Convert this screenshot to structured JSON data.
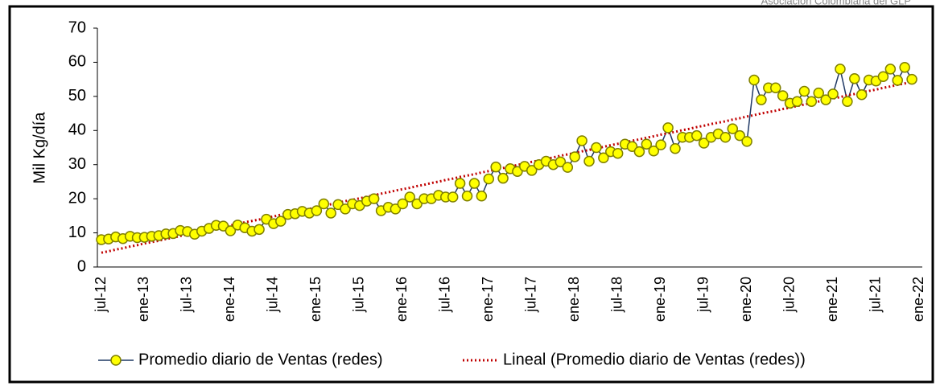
{
  "chart_data": {
    "type": "line",
    "source": "Asociación Colombiana del GLP",
    "y_label": "Mil  Kg/día",
    "categories": [
      "jul-12",
      null,
      null,
      null,
      null,
      null,
      "ene-13",
      null,
      null,
      null,
      null,
      null,
      "jul-13",
      null,
      null,
      null,
      null,
      null,
      "ene-14",
      null,
      null,
      null,
      null,
      null,
      "jul-14",
      null,
      null,
      null,
      null,
      null,
      "ene-15",
      null,
      null,
      null,
      null,
      null,
      "jul-15",
      null,
      null,
      null,
      null,
      null,
      "ene-16",
      null,
      null,
      null,
      null,
      null,
      "jul-16",
      null,
      null,
      null,
      null,
      null,
      "ene-17",
      null,
      null,
      null,
      null,
      null,
      "jul-17",
      null,
      null,
      null,
      null,
      null,
      "ene-18",
      null,
      null,
      null,
      null,
      null,
      "jul-18",
      null,
      null,
      null,
      null,
      null,
      "ene-19",
      null,
      null,
      null,
      null,
      null,
      "jul-19",
      null,
      null,
      null,
      null,
      null,
      "ene-20",
      null,
      null,
      null,
      null,
      null,
      "jul-20",
      null,
      null,
      null,
      null,
      null,
      "ene-21",
      null,
      null,
      null,
      null,
      null,
      "jul-21",
      null,
      null,
      null,
      null,
      null,
      "ene-22"
    ],
    "series": [
      {
        "name": "Promedio diario de Ventas (redes)",
        "color": "#1f3864",
        "marker_color": "#ffff00",
        "style": "solid",
        "values": [
          8,
          8.2,
          8.8,
          8.3,
          9,
          8.6,
          8.7,
          9,
          9.2,
          9.7,
          9.8,
          10.7,
          10.4,
          9.6,
          10.5,
          11.3,
          12.2,
          12,
          10.6,
          12.3,
          11.5,
          10.5,
          11,
          14,
          12.7,
          13.4,
          15.4,
          15.6,
          16.3,
          15.8,
          16.5,
          18.5,
          15.8,
          18.3,
          17,
          18.5,
          18,
          19.3,
          20,
          16.5,
          17.5,
          17,
          18.5,
          20.5,
          18.5,
          20,
          20,
          21,
          20.5,
          20.5,
          24.5,
          20.8,
          24.5,
          20.8,
          25.8,
          29.3,
          26,
          28.8,
          28,
          29.5,
          28.3,
          30,
          31,
          30,
          30.8,
          29.2,
          32.3,
          37,
          31,
          35,
          32,
          33.8,
          33.3,
          36,
          35.3,
          33.8,
          36,
          34,
          35.8,
          40.8,
          34.7,
          38,
          38,
          38.5,
          36.3,
          38,
          39,
          38,
          40.5,
          38.5,
          36.8,
          54.8,
          49,
          52.5,
          52.5,
          50.2,
          48,
          48.5,
          51.5,
          48.5,
          51,
          49,
          50.7,
          58,
          48.5,
          55.2,
          50.5,
          54.8,
          54.5,
          55.8,
          58,
          54.7,
          58.5,
          55,
          null
        ]
      },
      {
        "name": "Lineal (Promedio diario de Ventas (redes))",
        "color": "#c00000",
        "style": "dotted",
        "values": [
          4.2,
          4.6,
          5.1,
          5.5,
          6.0,
          6.4,
          6.9,
          7.3,
          7.7,
          8.2,
          8.6,
          9.1,
          9.5,
          10.0,
          10.4,
          10.8,
          11.3,
          11.7,
          12.2,
          12.6,
          13.1,
          13.5,
          13.9,
          14.4,
          14.8,
          15.3,
          15.7,
          16.2,
          16.6,
          17.0,
          17.5,
          17.9,
          18.4,
          18.8,
          19.3,
          19.7,
          20.1,
          20.6,
          21.0,
          21.5,
          21.9,
          22.4,
          22.8,
          23.2,
          23.7,
          24.1,
          24.6,
          25.0,
          25.5,
          25.9,
          26.4,
          26.8,
          27.2,
          27.7,
          28.1,
          28.6,
          29.0,
          29.4,
          29.9,
          30.3,
          30.8,
          31.2,
          31.7,
          32.1,
          32.6,
          33.0,
          33.4,
          33.9,
          34.3,
          34.8,
          35.2,
          35.7,
          36.1,
          36.5,
          37.0,
          37.4,
          37.9,
          38.3,
          38.8,
          39.2,
          39.6,
          40.1,
          40.5,
          41.0,
          41.4,
          41.9,
          42.3,
          42.7,
          43.2,
          43.6,
          44.1,
          44.5,
          45.0,
          45.4,
          45.8,
          46.3,
          46.7,
          47.2,
          47.6,
          48.1,
          48.5,
          49.0,
          49.4,
          49.8,
          50.3,
          50.7,
          51.2,
          51.6,
          52.0,
          52.5,
          52.9,
          53.4,
          53.8,
          54.3,
          null
        ]
      }
    ],
    "ylim": [
      0,
      70
    ],
    "yticks": [
      0,
      10,
      20,
      30,
      40,
      50,
      60,
      70
    ],
    "grid": false
  }
}
